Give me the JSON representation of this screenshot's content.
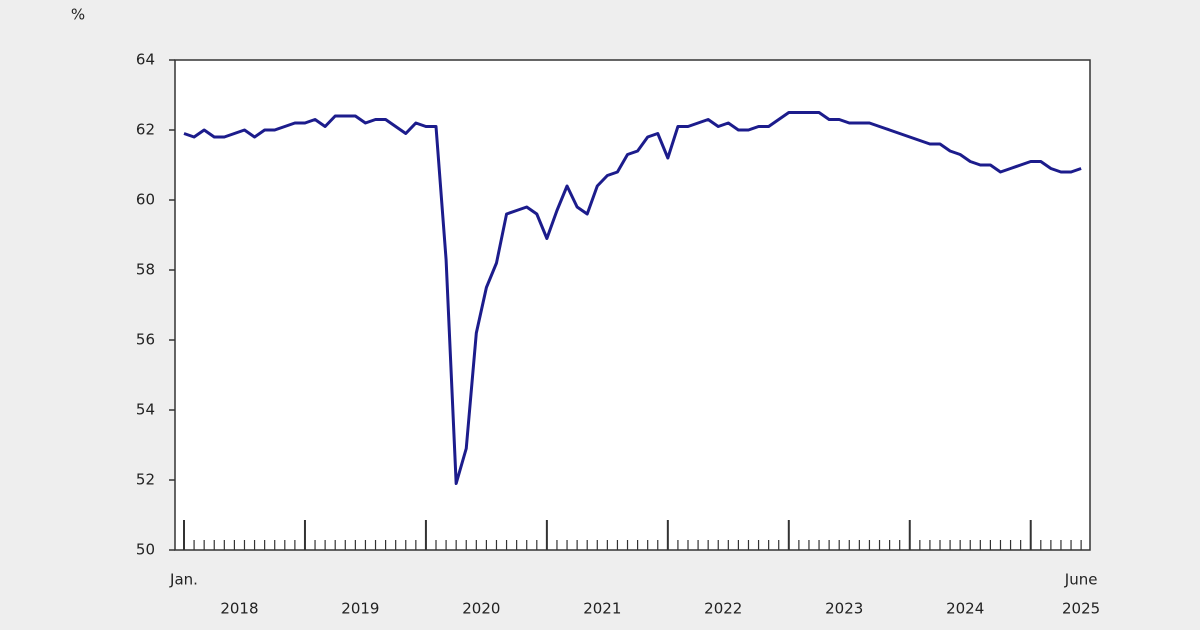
{
  "chart_data": {
    "type": "line",
    "y_label": "%",
    "start_label": "Jan.",
    "end_label": "June",
    "year_labels": [
      "2018",
      "2019",
      "2020",
      "2021",
      "2022",
      "2023",
      "2024",
      "2025"
    ],
    "series": [
      {
        "color": "#1c1c8c",
        "values": [
          61.9,
          61.8,
          62.0,
          61.8,
          61.8,
          61.9,
          62.0,
          61.8,
          62.0,
          62.0,
          62.1,
          62.2,
          62.2,
          62.3,
          62.1,
          62.4,
          62.4,
          62.4,
          62.2,
          62.3,
          62.3,
          62.1,
          61.9,
          62.2,
          62.1,
          62.1,
          58.3,
          51.9,
          52.9,
          56.2,
          57.5,
          58.2,
          59.6,
          59.7,
          59.8,
          59.6,
          58.9,
          59.7,
          60.4,
          59.8,
          59.6,
          60.4,
          60.7,
          60.8,
          61.3,
          61.4,
          61.8,
          61.9,
          61.2,
          62.1,
          62.1,
          62.2,
          62.3,
          62.1,
          62.2,
          62.0,
          62.0,
          62.1,
          62.1,
          62.3,
          62.5,
          62.5,
          62.5,
          62.5,
          62.3,
          62.3,
          62.2,
          62.2,
          62.2,
          62.1,
          62.0,
          61.9,
          61.8,
          61.7,
          61.6,
          61.6,
          61.4,
          61.3,
          61.1,
          61.0,
          61.0,
          60.8,
          60.9,
          61.0,
          61.1,
          61.1,
          60.9,
          60.8,
          60.8,
          60.9
        ]
      }
    ],
    "ylim": [
      50,
      64
    ],
    "yticks": [
      50,
      52,
      54,
      56,
      58,
      60,
      62,
      64
    ]
  }
}
